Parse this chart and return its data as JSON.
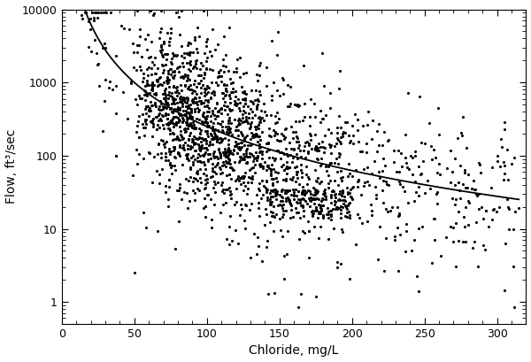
{
  "title": "",
  "xlabel": "Chloride, mg/L",
  "ylabel": "Flow, ft³/sec",
  "xlim": [
    0,
    320
  ],
  "ylim": [
    0.5,
    10000
  ],
  "curve_a": 2500000,
  "curve_b": -2.0,
  "scatter_seed": 7,
  "n_points": 1800,
  "bg_color": "#ffffff",
  "dot_color": "#000000",
  "curve_color": "#000000",
  "dot_size": 5,
  "curve_linewidth": 1.3,
  "xlabel_fontsize": 10,
  "ylabel_fontsize": 10,
  "tick_fontsize": 9
}
